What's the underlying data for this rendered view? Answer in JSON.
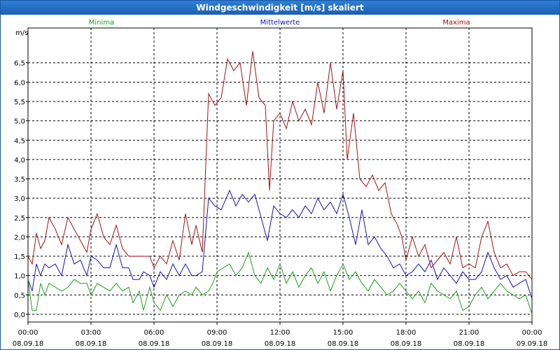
{
  "window": {
    "title": "Windgeschwindigkeit [m/s] skaliert"
  },
  "chart_data": {
    "type": "line",
    "title": "Windgeschwindigkeit [m/s] skaliert",
    "ylabel": "m/s",
    "ylim": [
      -0.2,
      7.4
    ],
    "xlim": [
      0,
      24
    ],
    "yticks": [
      "0,0",
      "0,5",
      "1,0",
      "1,5",
      "2,0",
      "2,5",
      "3,0",
      "3,5",
      "4,0",
      "4,5",
      "5,0",
      "5,5",
      "6,0",
      "6,5"
    ],
    "ytick_values": [
      0,
      0.5,
      1,
      1.5,
      2,
      2.5,
      3,
      3.5,
      4,
      4.5,
      5,
      5.5,
      6,
      6.5
    ],
    "xticks": [
      {
        "time": "00:00",
        "date": "08.09.18",
        "hour": 0
      },
      {
        "time": "03:00",
        "date": "08.09.18",
        "hour": 3
      },
      {
        "time": "06:00",
        "date": "08.09.18",
        "hour": 6
      },
      {
        "time": "09:00",
        "date": "08.09.18",
        "hour": 9
      },
      {
        "time": "12:00",
        "date": "08.09.18",
        "hour": 12
      },
      {
        "time": "15:00",
        "date": "08.09.18",
        "hour": 15
      },
      {
        "time": "18:00",
        "date": "08.09.18",
        "hour": 18
      },
      {
        "time": "21:00",
        "date": "08.09.18",
        "hour": 21
      },
      {
        "time": "00:00",
        "date": "09.09.18",
        "hour": 24
      }
    ],
    "grid": true,
    "series": [
      {
        "name": "Minima",
        "color": "#1ea01e",
        "legend_position": "left",
        "points": [
          [
            0,
            0.9
          ],
          [
            0.2,
            0.1
          ],
          [
            0.4,
            0.1
          ],
          [
            0.6,
            0.8
          ],
          [
            0.8,
            0.5
          ],
          [
            1,
            0.8
          ],
          [
            1.3,
            0.7
          ],
          [
            1.6,
            0.6
          ],
          [
            1.9,
            0.7
          ],
          [
            2.2,
            0.9
          ],
          [
            2.5,
            0.8
          ],
          [
            2.8,
            0.8
          ],
          [
            3,
            0.5
          ],
          [
            3.3,
            0.8
          ],
          [
            3.6,
            0.7
          ],
          [
            3.9,
            0.6
          ],
          [
            4.2,
            0.8
          ],
          [
            4.5,
            0.6
          ],
          [
            4.8,
            0.7
          ],
          [
            5,
            0.3
          ],
          [
            5.3,
            0.6
          ],
          [
            5.5,
            0.1
          ],
          [
            5.8,
            0.7
          ],
          [
            6,
            0.3
          ],
          [
            6.3,
            0.1
          ],
          [
            6.6,
            0.5
          ],
          [
            6.9,
            0.2
          ],
          [
            7.2,
            0.5
          ],
          [
            7.5,
            0.6
          ],
          [
            7.8,
            0.5
          ],
          [
            8,
            0.7
          ],
          [
            8.3,
            0.5
          ],
          [
            8.6,
            0.6
          ],
          [
            8.8,
            0.8
          ],
          [
            9,
            1.1
          ],
          [
            9.3,
            1.2
          ],
          [
            9.6,
            1.3
          ],
          [
            9.9,
            1.0
          ],
          [
            10.2,
            1.2
          ],
          [
            10.5,
            1.6
          ],
          [
            10.8,
            1.0
          ],
          [
            11.1,
            0.8
          ],
          [
            11.4,
            1.2
          ],
          [
            11.7,
            0.9
          ],
          [
            12,
            1.3
          ],
          [
            12.3,
            0.8
          ],
          [
            12.6,
            1.1
          ],
          [
            12.9,
            0.7
          ],
          [
            13.2,
            1.0
          ],
          [
            13.5,
            1.2
          ],
          [
            13.8,
            0.8
          ],
          [
            14.1,
            1.1
          ],
          [
            14.4,
            0.6
          ],
          [
            14.7,
            1.0
          ],
          [
            15,
            1.3
          ],
          [
            15.3,
            0.9
          ],
          [
            15.6,
            1.1
          ],
          [
            15.9,
            0.8
          ],
          [
            16.2,
            0.6
          ],
          [
            16.5,
            0.9
          ],
          [
            16.8,
            0.7
          ],
          [
            17.1,
            0.5
          ],
          [
            17.4,
            0.6
          ],
          [
            17.7,
            0.8
          ],
          [
            18,
            0.6
          ],
          [
            18.3,
            0.4
          ],
          [
            18.6,
            0.6
          ],
          [
            18.9,
            0.3
          ],
          [
            19.2,
            0.8
          ],
          [
            19.5,
            0.6
          ],
          [
            19.8,
            0.5
          ],
          [
            20.1,
            0.4
          ],
          [
            20.4,
            0.6
          ],
          [
            20.7,
            0.1
          ],
          [
            21,
            0.2
          ],
          [
            21.3,
            0.5
          ],
          [
            21.6,
            0.7
          ],
          [
            21.9,
            0.4
          ],
          [
            22.2,
            0.6
          ],
          [
            22.5,
            0.8
          ],
          [
            22.8,
            0.6
          ],
          [
            23.1,
            0.5
          ],
          [
            23.4,
            0.4
          ],
          [
            23.7,
            0.5
          ],
          [
            24,
            0.0
          ]
        ]
      },
      {
        "name": "Mittelwerte",
        "color": "#1414b4",
        "legend_position": "center",
        "points": [
          [
            0,
            0.9
          ],
          [
            0.2,
            0.6
          ],
          [
            0.4,
            1.3
          ],
          [
            0.6,
            1.0
          ],
          [
            0.8,
            1.3
          ],
          [
            1,
            1.2
          ],
          [
            1.3,
            1.3
          ],
          [
            1.6,
            1.0
          ],
          [
            1.9,
            1.8
          ],
          [
            2.2,
            1.3
          ],
          [
            2.5,
            1.4
          ],
          [
            2.8,
            1.0
          ],
          [
            3,
            1.5
          ],
          [
            3.3,
            1.4
          ],
          [
            3.6,
            1.2
          ],
          [
            3.9,
            1.2
          ],
          [
            4.2,
            1.8
          ],
          [
            4.5,
            1.2
          ],
          [
            4.8,
            1.2
          ],
          [
            5,
            0.9
          ],
          [
            5.3,
            0.9
          ],
          [
            5.5,
            1.1
          ],
          [
            5.8,
            1.0
          ],
          [
            6,
            0.7
          ],
          [
            6.3,
            1.1
          ],
          [
            6.6,
            0.9
          ],
          [
            6.9,
            1.3
          ],
          [
            7.2,
            1.0
          ],
          [
            7.5,
            1.3
          ],
          [
            7.8,
            1.0
          ],
          [
            8,
            1.0
          ],
          [
            8.3,
            1.1
          ],
          [
            8.6,
            3.0
          ],
          [
            8.9,
            2.8
          ],
          [
            9.2,
            2.7
          ],
          [
            9.6,
            3.2
          ],
          [
            9.9,
            2.8
          ],
          [
            10.2,
            3.1
          ],
          [
            10.5,
            2.9
          ],
          [
            10.8,
            3.1
          ],
          [
            11.1,
            2.5
          ],
          [
            11.4,
            1.9
          ],
          [
            11.7,
            2.8
          ],
          [
            12,
            2.6
          ],
          [
            12.3,
            2.5
          ],
          [
            12.6,
            2.7
          ],
          [
            12.9,
            2.5
          ],
          [
            13.2,
            2.8
          ],
          [
            13.5,
            2.6
          ],
          [
            13.8,
            3.0
          ],
          [
            14.1,
            2.7
          ],
          [
            14.4,
            2.9
          ],
          [
            14.7,
            2.6
          ],
          [
            15,
            3.1
          ],
          [
            15.3,
            2.5
          ],
          [
            15.6,
            1.8
          ],
          [
            15.9,
            2.7
          ],
          [
            16.2,
            1.8
          ],
          [
            16.5,
            2.0
          ],
          [
            16.8,
            1.7
          ],
          [
            17.1,
            1.5
          ],
          [
            17.4,
            1.2
          ],
          [
            17.7,
            1.3
          ],
          [
            18,
            1.0
          ],
          [
            18.3,
            1.1
          ],
          [
            18.6,
            1.3
          ],
          [
            18.9,
            1.1
          ],
          [
            19.2,
            1.4
          ],
          [
            19.5,
            0.9
          ],
          [
            19.8,
            1.2
          ],
          [
            20.1,
            1.0
          ],
          [
            20.4,
            0.8
          ],
          [
            20.7,
            1.1
          ],
          [
            21,
            0.9
          ],
          [
            21.3,
            0.9
          ],
          [
            21.6,
            1.1
          ],
          [
            21.9,
            1.6
          ],
          [
            22.2,
            1.2
          ],
          [
            22.5,
            0.9
          ],
          [
            22.8,
            1.0
          ],
          [
            23.1,
            0.7
          ],
          [
            23.4,
            0.8
          ],
          [
            23.7,
            0.9
          ],
          [
            24,
            0.4
          ]
        ]
      },
      {
        "name": "Maxima",
        "color": "#a01414",
        "legend_position": "right",
        "points": [
          [
            0,
            1.5
          ],
          [
            0.2,
            1.3
          ],
          [
            0.4,
            2.1
          ],
          [
            0.6,
            1.7
          ],
          [
            0.8,
            1.9
          ],
          [
            1,
            2.5
          ],
          [
            1.3,
            2.2
          ],
          [
            1.6,
            1.8
          ],
          [
            1.9,
            2.5
          ],
          [
            2.2,
            2.2
          ],
          [
            2.5,
            1.9
          ],
          [
            2.8,
            1.6
          ],
          [
            3,
            2.2
          ],
          [
            3.3,
            2.6
          ],
          [
            3.6,
            2.0
          ],
          [
            3.9,
            1.8
          ],
          [
            4.2,
            2.3
          ],
          [
            4.5,
            1.7
          ],
          [
            4.8,
            1.5
          ],
          [
            5,
            1.5
          ],
          [
            5.3,
            1.5
          ],
          [
            5.5,
            1.5
          ],
          [
            5.8,
            1.5
          ],
          [
            6,
            1.2
          ],
          [
            6.3,
            1.5
          ],
          [
            6.6,
            1.3
          ],
          [
            6.9,
            1.9
          ],
          [
            7.2,
            1.4
          ],
          [
            7.5,
            2.6
          ],
          [
            7.8,
            1.8
          ],
          [
            8,
            2.3
          ],
          [
            8.3,
            1.6
          ],
          [
            8.6,
            5.7
          ],
          [
            8.9,
            5.4
          ],
          [
            9.2,
            5.6
          ],
          [
            9.5,
            6.6
          ],
          [
            9.8,
            6.3
          ],
          [
            10.1,
            6.5
          ],
          [
            10.4,
            5.4
          ],
          [
            10.7,
            6.8
          ],
          [
            11,
            5.6
          ],
          [
            11.3,
            5.4
          ],
          [
            11.5,
            3.2
          ],
          [
            11.7,
            5.0
          ],
          [
            12,
            5.2
          ],
          [
            12.3,
            4.8
          ],
          [
            12.6,
            5.5
          ],
          [
            12.9,
            5.0
          ],
          [
            13.2,
            5.3
          ],
          [
            13.5,
            4.9
          ],
          [
            13.8,
            6.0
          ],
          [
            14.1,
            5.2
          ],
          [
            14.4,
            6.5
          ],
          [
            14.7,
            5.3
          ],
          [
            15,
            6.3
          ],
          [
            15.2,
            4.0
          ],
          [
            15.5,
            5.2
          ],
          [
            15.8,
            3.5
          ],
          [
            16.1,
            3.3
          ],
          [
            16.4,
            3.6
          ],
          [
            16.7,
            3.2
          ],
          [
            17,
            3.4
          ],
          [
            17.3,
            2.6
          ],
          [
            17.6,
            2.3
          ],
          [
            17.8,
            2.0
          ],
          [
            18,
            1.4
          ],
          [
            18.3,
            2.0
          ],
          [
            18.6,
            1.5
          ],
          [
            18.9,
            1.8
          ],
          [
            19.2,
            1.2
          ],
          [
            19.5,
            1.4
          ],
          [
            19.8,
            1.6
          ],
          [
            20.1,
            1.3
          ],
          [
            20.4,
            2.0
          ],
          [
            20.7,
            1.2
          ],
          [
            21,
            1.3
          ],
          [
            21.3,
            1.2
          ],
          [
            21.6,
            2.0
          ],
          [
            21.9,
            2.4
          ],
          [
            22.2,
            1.6
          ],
          [
            22.5,
            1.2
          ],
          [
            22.8,
            1.3
          ],
          [
            23.1,
            1.0
          ],
          [
            23.4,
            1.1
          ],
          [
            23.7,
            1.1
          ],
          [
            24,
            0.9
          ]
        ]
      }
    ]
  }
}
